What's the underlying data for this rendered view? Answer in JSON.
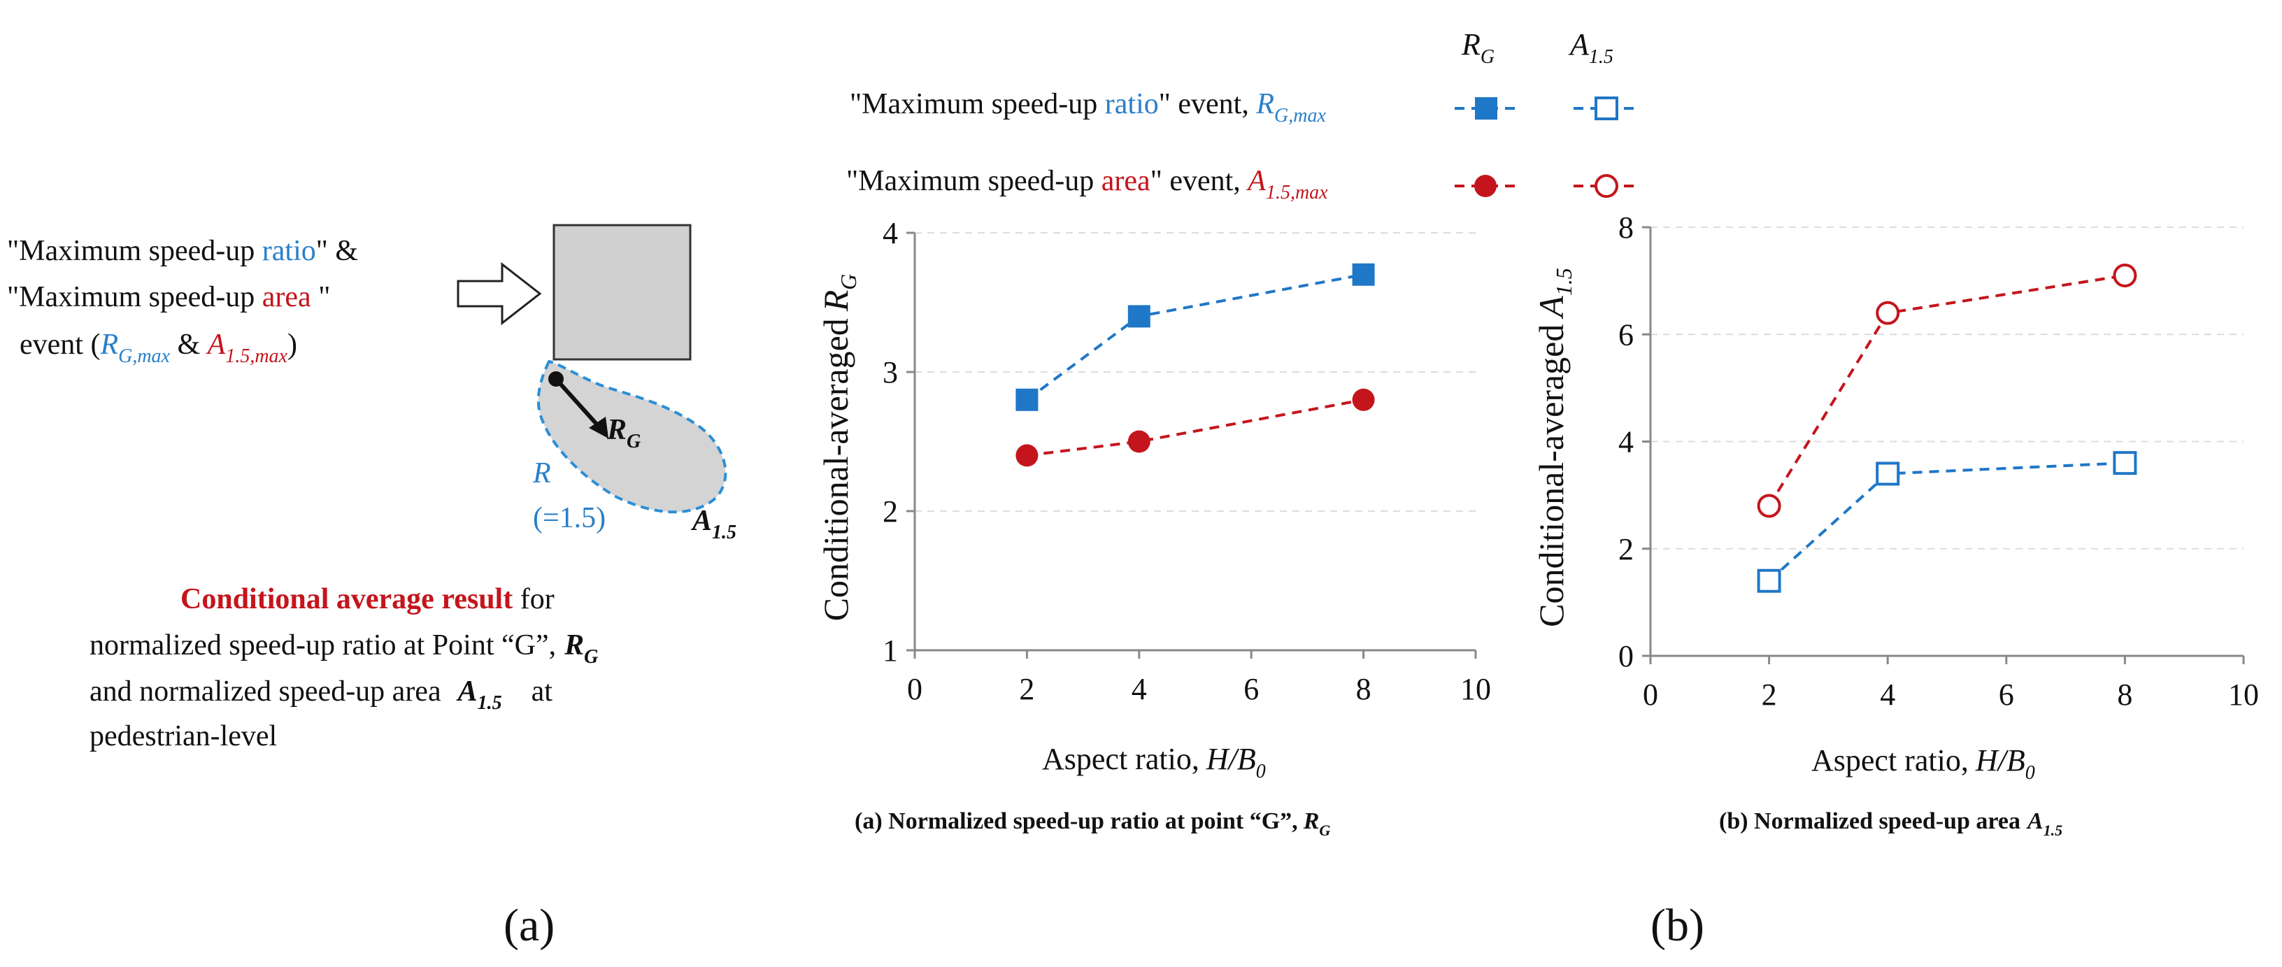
{
  "colors": {
    "blue": "#1f77c7",
    "red": "#c4151c",
    "grey": "#d0d0d0"
  },
  "left_figure": {
    "event_line1_pre": "\"Maximum speed-up ",
    "event_line1_word": "ratio",
    "event_line1_post": "\" &",
    "event_line2_pre": "\"Maximum speed-up ",
    "event_line2_word": "area",
    "event_line2_post": " \"",
    "event_line3_pre": "event (",
    "event_line3_rg": "R",
    "event_line3_rg_sub": "G,max",
    "event_line3_amp": " & ",
    "event_line3_a": "A",
    "event_line3_a_sub": "1.5,max",
    "event_line3_post": ")",
    "rg_label": "R",
    "rg_label_sub": "G",
    "r_label": "R",
    "r_value": "(=1.5)",
    "a_label": "A",
    "a_label_sub": "1.5",
    "desc_title": "Conditional average result",
    "desc_title_post": " for",
    "desc_line2": "normalized speed-up ratio at Point “G”,",
    "desc_line3": "and normalized speed-up area",
    "desc_line3_post": "at",
    "desc_line4": "pedestrian-level",
    "panel_label": "(a)"
  },
  "legend": {
    "col1_header": "R",
    "col1_header_sub": "G",
    "col2_header": "A",
    "col2_header_sub": "1.5",
    "row1_text_pre": "\"Maximum speed-up ",
    "row1_text_word": "ratio",
    "row1_text_post": "\" event, ",
    "row1_sym": "R",
    "row1_sym_sub": "G,max",
    "row2_text_pre": "\"Maximum speed-up ",
    "row2_text_word": "area",
    "row2_text_post": "\" event, ",
    "row2_sym": "A",
    "row2_sym_sub": "1.5,max"
  },
  "panel_label_b": "(b)",
  "chart_data": [
    {
      "type": "line",
      "title": "(a) Normalized speed-up ratio at point “G”,",
      "title_sym": "R",
      "title_sym_sub": "G",
      "xlabel": "Aspect ratio,",
      "xlabel_sym": "H/B",
      "xlabel_sym_sub": "0",
      "ylabel": "Conditional-averaged",
      "ylabel_sym": "R",
      "ylabel_sym_sub": "G",
      "xlim": [
        0,
        10
      ],
      "ylim": [
        1,
        4
      ],
      "xticks": [
        "0",
        "2",
        "4",
        "6",
        "8",
        "10"
      ],
      "yticks": [
        "1",
        "2",
        "3",
        "4"
      ],
      "x": [
        2,
        4,
        8
      ],
      "series": [
        {
          "name": "Maximum speed-up ratio event",
          "color": "#1f77c7",
          "marker": "square-filled",
          "values": [
            2.8,
            3.4,
            3.7
          ]
        },
        {
          "name": "Maximum speed-up area event",
          "color": "#c4151c",
          "marker": "circle-filled",
          "values": [
            2.4,
            2.5,
            2.8
          ]
        }
      ]
    },
    {
      "type": "line",
      "title": "(b) Normalized speed-up area",
      "title_sym": "A",
      "title_sym_sub": "1.5",
      "xlabel": "Aspect ratio,",
      "xlabel_sym": "H/B",
      "xlabel_sym_sub": "0",
      "ylabel": "Conditional-averaged",
      "ylabel_sym": "A",
      "ylabel_sym_sub": "1.5",
      "xlim": [
        0,
        10
      ],
      "ylim": [
        0,
        8
      ],
      "xticks": [
        "0",
        "2",
        "4",
        "6",
        "8",
        "10"
      ],
      "yticks": [
        "0",
        "2",
        "4",
        "6",
        "8"
      ],
      "x": [
        2,
        4,
        8
      ],
      "series": [
        {
          "name": "Maximum speed-up ratio event",
          "color": "#1f77c7",
          "marker": "square-open",
          "values": [
            1.4,
            3.4,
            3.6
          ]
        },
        {
          "name": "Maximum speed-up area event",
          "color": "#c4151c",
          "marker": "circle-open",
          "values": [
            2.8,
            6.4,
            7.1
          ]
        }
      ]
    }
  ]
}
